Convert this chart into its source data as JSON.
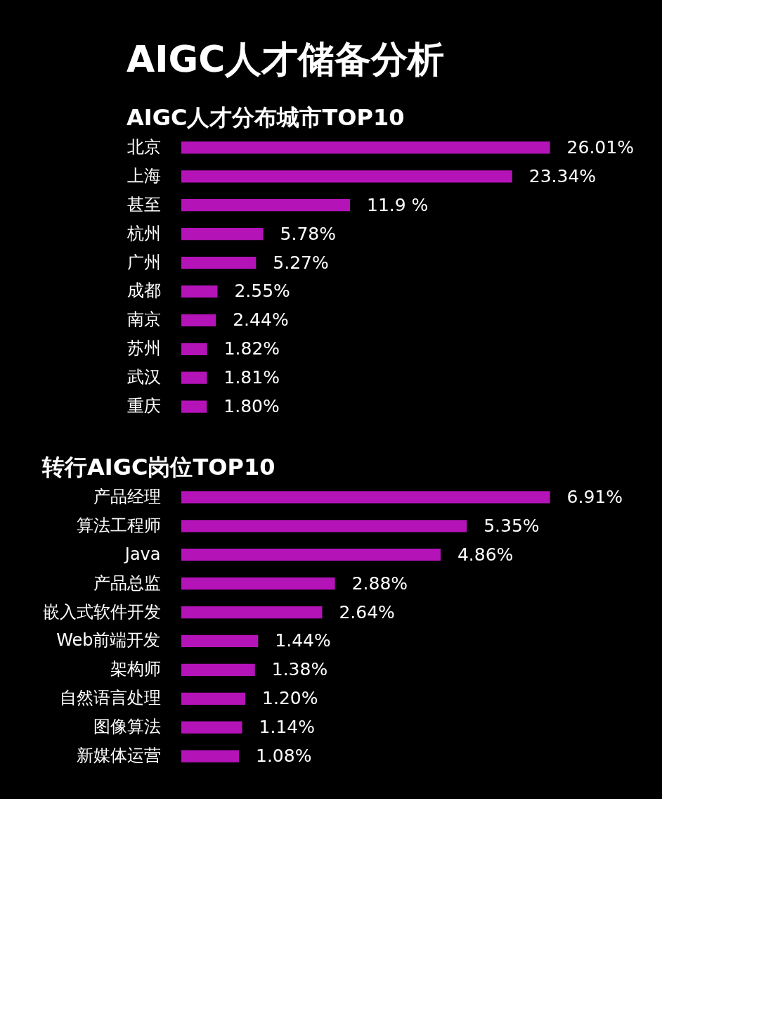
{
  "chart_data": [
    {
      "type": "bar",
      "orientation": "horizontal",
      "title": "AIGC人才储备分析",
      "subtitle": "AIGC人才分布城市TOP10",
      "color": "#b413b8",
      "categories": [
        "北京",
        "上海",
        "甚至",
        "杭州",
        "广州",
        "成都",
        "南京",
        "苏州",
        "武汉",
        "重庆"
      ],
      "values": [
        26.01,
        23.34,
        11.9,
        5.78,
        5.27,
        2.55,
        2.44,
        1.82,
        1.81,
        1.8
      ],
      "value_labels": [
        "26.01%",
        "23.34%",
        "11.9 %",
        "5.78%",
        "5.27%",
        "2.55%",
        "2.44%",
        "1.82%",
        "1.81%",
        "1.80%"
      ]
    },
    {
      "type": "bar",
      "orientation": "horizontal",
      "title": "转行AIGC岗位TOP10",
      "color": "#b413b8",
      "categories": [
        "产品经理",
        "算法工程师",
        "Java",
        "产品总监",
        "嵌入式软件开发",
        "Web前端开发",
        "架构师",
        "自然语言处理",
        "图像算法",
        "新媒体运营"
      ],
      "values": [
        6.91,
        5.35,
        4.86,
        2.88,
        2.64,
        1.44,
        1.38,
        1.2,
        1.14,
        1.08
      ],
      "value_labels": [
        "6.91%",
        "5.35%",
        "4.86%",
        "2.88%",
        "2.64%",
        "1.44%",
        "1.38%",
        "1.20%",
        "1.14%",
        "1.08%"
      ]
    }
  ]
}
